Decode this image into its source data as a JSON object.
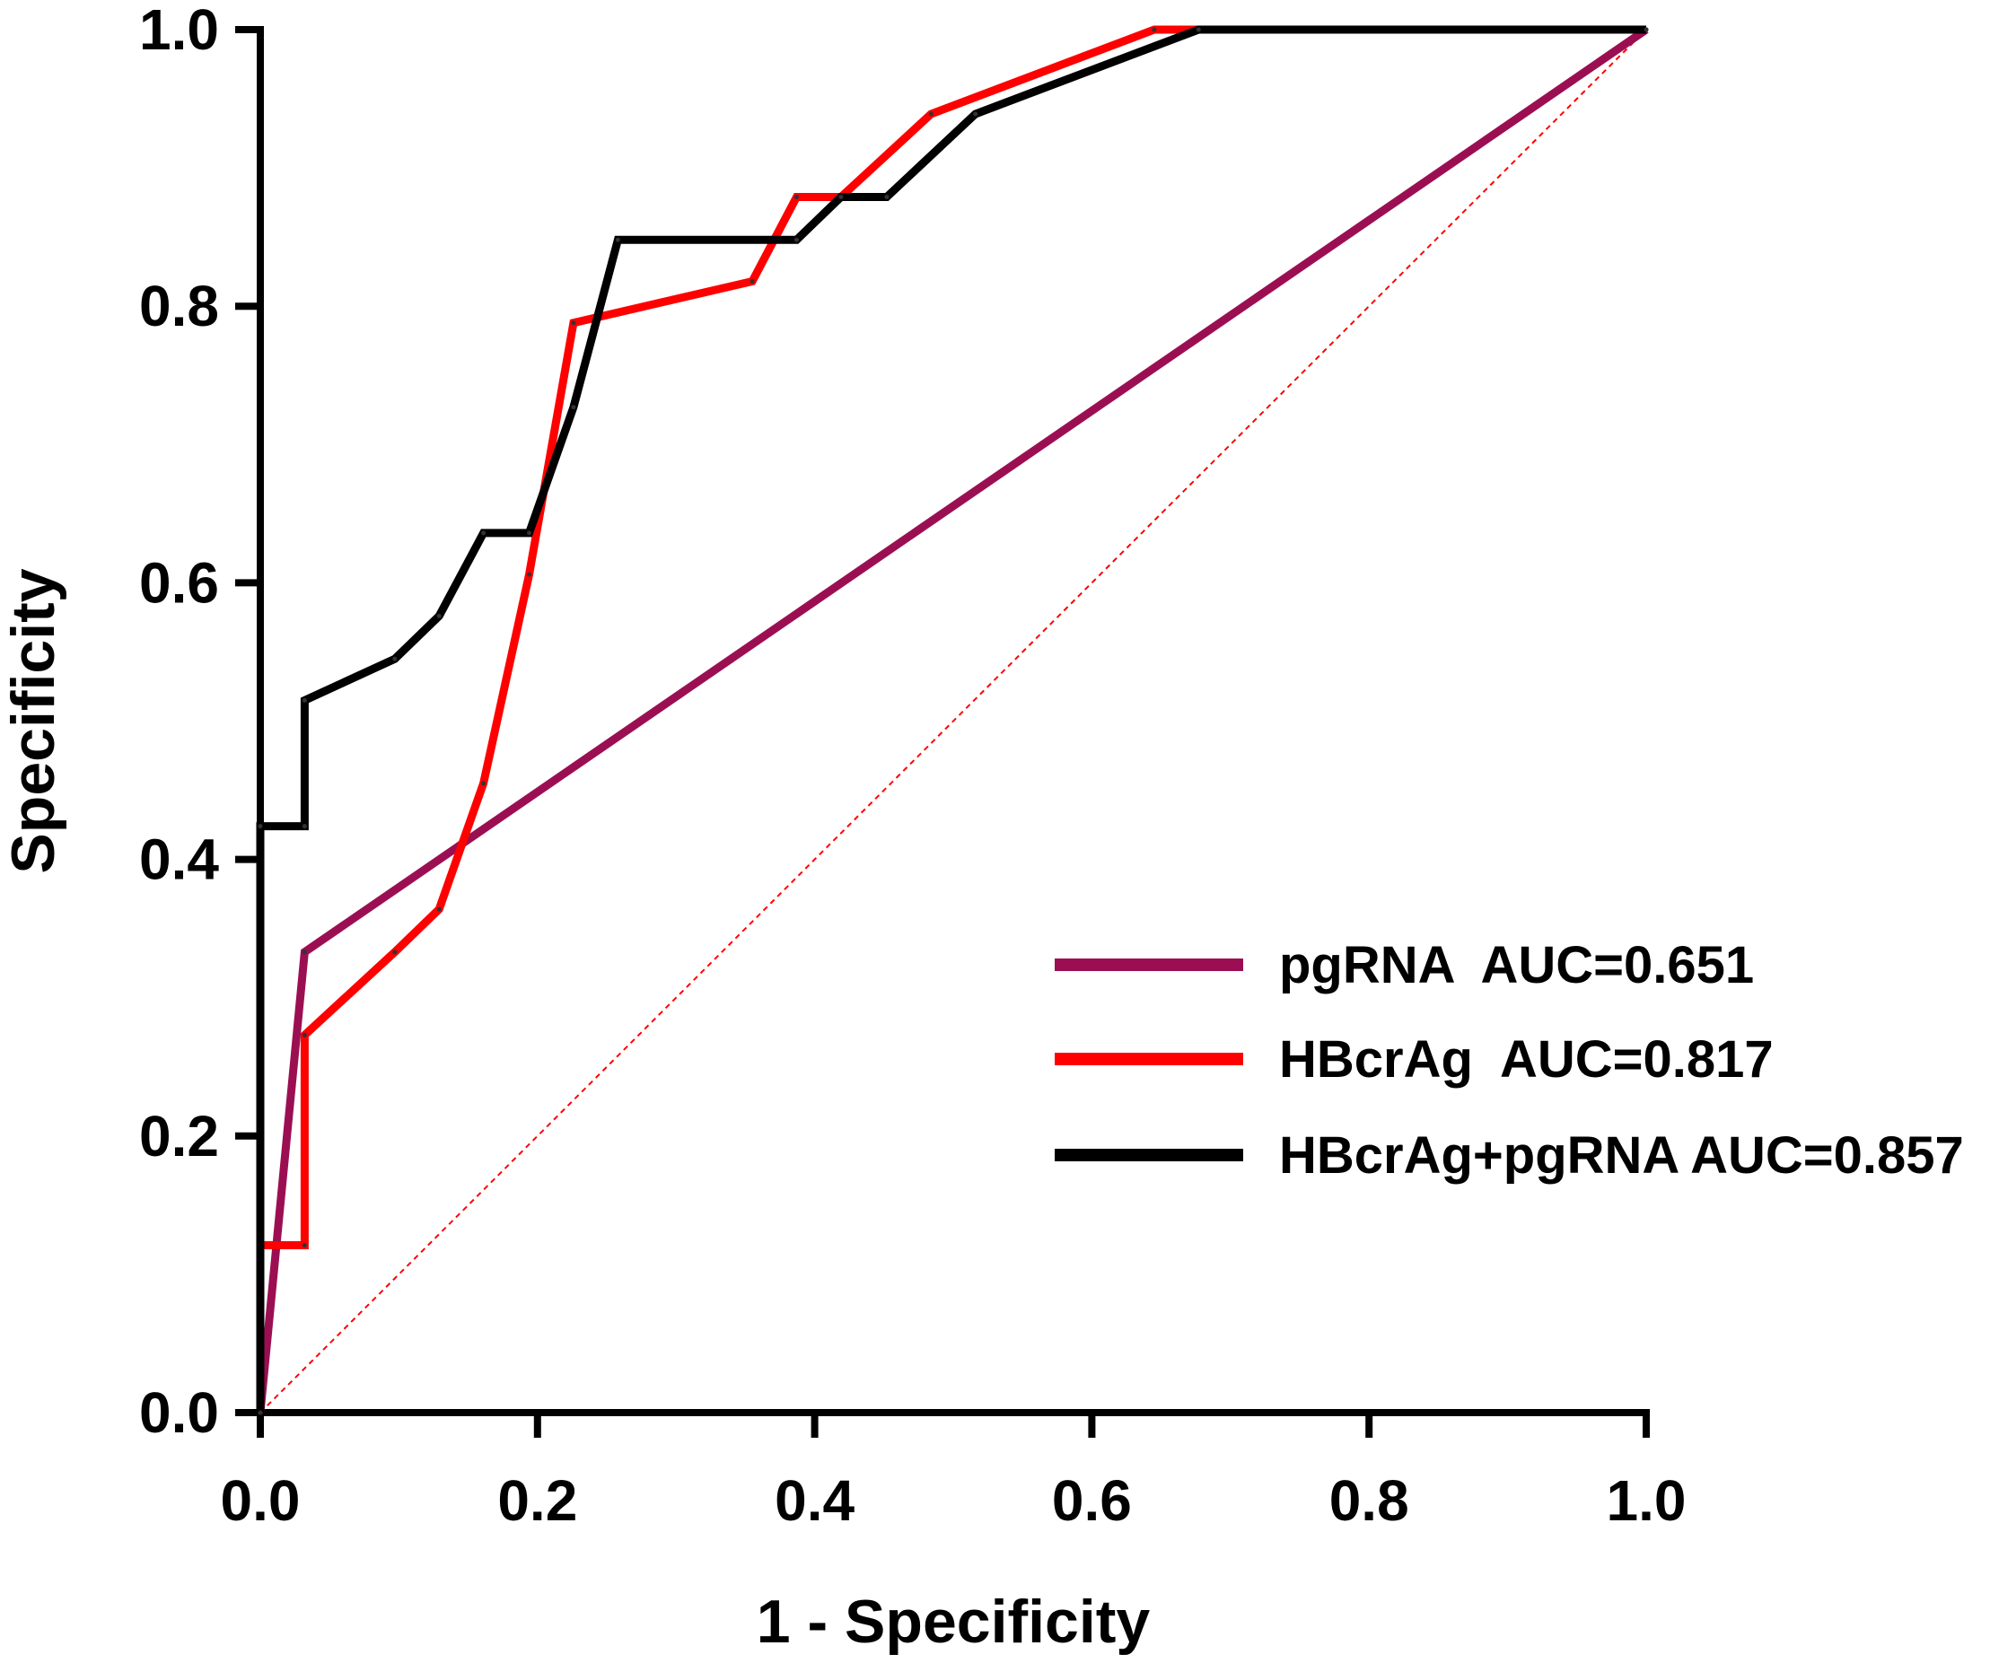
{
  "chart_data": {
    "type": "line",
    "title": "",
    "xlabel": "1 - Specificity",
    "ylabel": "Specificity",
    "xlim": [
      0,
      1
    ],
    "ylim": [
      0,
      1
    ],
    "xticks": [
      "0.0",
      "0.2",
      "0.4",
      "0.6",
      "0.8",
      "1.0"
    ],
    "yticks": [
      "0.0",
      "0.2",
      "0.4",
      "0.6",
      "0.8",
      "1.0"
    ],
    "grid": false,
    "legend_position": "bottom-right",
    "reference_line": {
      "name": "chance",
      "color": "#ff0000",
      "points": [
        [
          0,
          0
        ],
        [
          1,
          1
        ]
      ],
      "style": "dashed"
    },
    "series": [
      {
        "name": "pgRNA  AUC=0.651",
        "color": "#9b0f52",
        "points": [
          [
            0,
            0
          ],
          [
            0.032,
            0.333
          ],
          [
            1,
            1
          ]
        ]
      },
      {
        "name": "HBcrAg  AUC=0.817",
        "color": "#ff0000",
        "points": [
          [
            0,
            0
          ],
          [
            0,
            0.121
          ],
          [
            0.032,
            0.121
          ],
          [
            0.032,
            0.273
          ],
          [
            0.097,
            0.333
          ],
          [
            0.129,
            0.364
          ],
          [
            0.161,
            0.455
          ],
          [
            0.194,
            0.606
          ],
          [
            0.226,
            0.788
          ],
          [
            0.355,
            0.818
          ],
          [
            0.387,
            0.879
          ],
          [
            0.419,
            0.879
          ],
          [
            0.484,
            0.939
          ],
          [
            0.645,
            1.0
          ],
          [
            1,
            1
          ]
        ]
      },
      {
        "name": "HBcrAg+pgRNA AUC=0.857",
        "color": "#000000",
        "points": [
          [
            0,
            0
          ],
          [
            0,
            0.424
          ],
          [
            0.032,
            0.424
          ],
          [
            0.032,
            0.515
          ],
          [
            0.097,
            0.545
          ],
          [
            0.129,
            0.576
          ],
          [
            0.161,
            0.636
          ],
          [
            0.194,
            0.636
          ],
          [
            0.226,
            0.727
          ],
          [
            0.258,
            0.848
          ],
          [
            0.387,
            0.848
          ],
          [
            0.419,
            0.879
          ],
          [
            0.452,
            0.879
          ],
          [
            0.516,
            0.939
          ],
          [
            0.677,
            1.0
          ],
          [
            1,
            1
          ]
        ]
      }
    ]
  }
}
